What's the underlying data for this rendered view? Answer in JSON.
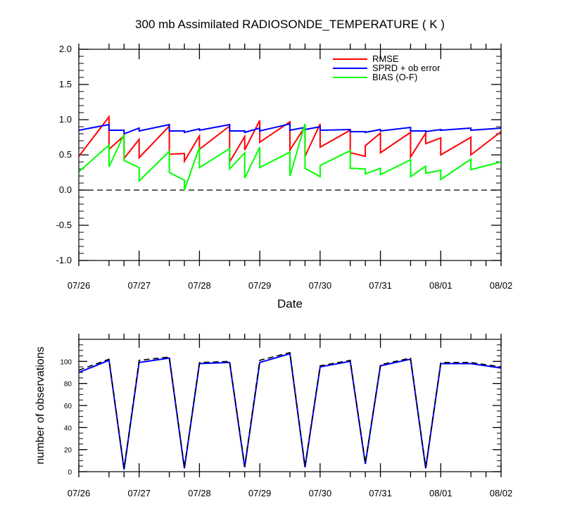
{
  "chart_data": [
    {
      "type": "line",
      "title": "300 mb Assimilated RADIOSONDE_TEMPERATURE ( K )",
      "xlabel": "Date",
      "ylabel": "",
      "x_tick_labels": [
        "07/26",
        "07/27",
        "07/28",
        "07/29",
        "07/30",
        "07/31",
        "08/01",
        "08/02"
      ],
      "xlim": [
        "07/26",
        "08/02"
      ],
      "ylim": [
        -1.0,
        2.0
      ],
      "y_ticks": [
        "-1.0",
        "-0.5",
        "0.0",
        "0.5",
        "1.0",
        "1.5",
        "2.0"
      ],
      "reference_line": {
        "y": 0.0,
        "style": "dashed"
      },
      "legend_position": "top-right",
      "series": [
        {
          "name": "RMSE",
          "color": "#ff0000",
          "x": [
            "07/26 00:00",
            "07/26 12:00",
            "07/26 12:00",
            "07/26 18:00",
            "07/26 18:00",
            "07/27 00:00",
            "07/27 00:00",
            "07/27 12:00",
            "07/27 12:00",
            "07/27 18:00",
            "07/27 18:00",
            "07/28 00:00",
            "07/28 00:00",
            "07/28 12:00",
            "07/28 12:00",
            "07/28 18:00",
            "07/28 18:00",
            "07/29 00:00",
            "07/29 00:00",
            "07/29 12:00",
            "07/29 12:00",
            "07/29 18:00",
            "07/29 18:00",
            "07/30 00:00",
            "07/30 00:00",
            "07/30 12:00",
            "07/30 12:00",
            "07/30 18:00",
            "07/30 18:00",
            "07/31 00:00",
            "07/31 00:00",
            "07/31 12:00",
            "07/31 12:00",
            "07/31 18:00",
            "07/31 18:00",
            "08/01 00:00",
            "08/01 00:00",
            "08/01 12:00",
            "08/01 12:00",
            "08/02 00:00"
          ],
          "y": [
            0.48,
            1.04,
            0.58,
            0.77,
            0.45,
            0.72,
            0.46,
            0.91,
            0.51,
            0.52,
            0.41,
            0.77,
            0.58,
            0.91,
            0.4,
            0.76,
            0.57,
            0.99,
            0.68,
            0.97,
            0.57,
            0.9,
            0.48,
            0.94,
            0.61,
            0.85,
            0.53,
            0.48,
            0.63,
            0.81,
            0.53,
            0.82,
            0.47,
            0.81,
            0.66,
            0.74,
            0.5,
            0.75,
            0.5,
            0.83
          ]
        },
        {
          "name": "SPRD + ob error",
          "color": "#0000ff",
          "x": [
            "07/26 00:00",
            "07/26 12:00",
            "07/26 12:00",
            "07/26 18:00",
            "07/26 18:00",
            "07/27 00:00",
            "07/27 00:00",
            "07/27 12:00",
            "07/27 12:00",
            "07/27 18:00",
            "07/27 18:00",
            "07/28 00:00",
            "07/28 00:00",
            "07/28 12:00",
            "07/28 12:00",
            "07/28 18:00",
            "07/28 18:00",
            "07/29 00:00",
            "07/29 00:00",
            "07/29 12:00",
            "07/29 12:00",
            "07/29 18:00",
            "07/29 18:00",
            "07/30 00:00",
            "07/30 00:00",
            "07/30 12:00",
            "07/30 12:00",
            "07/30 18:00",
            "07/30 18:00",
            "07/31 00:00",
            "07/31 00:00",
            "07/31 12:00",
            "07/31 12:00",
            "07/31 18:00",
            "07/31 18:00",
            "08/01 00:00",
            "08/01 00:00",
            "08/01 12:00",
            "08/01 12:00",
            "08/02 00:00"
          ],
          "y": [
            0.85,
            0.93,
            0.85,
            0.85,
            0.8,
            0.88,
            0.84,
            0.93,
            0.84,
            0.84,
            0.82,
            0.87,
            0.85,
            0.93,
            0.84,
            0.84,
            0.82,
            0.88,
            0.84,
            0.94,
            0.85,
            0.89,
            0.86,
            0.9,
            0.85,
            0.86,
            0.83,
            0.83,
            0.82,
            0.86,
            0.84,
            0.89,
            0.84,
            0.84,
            0.83,
            0.86,
            0.85,
            0.88,
            0.85,
            0.88
          ]
        },
        {
          "name": "BIAS (O-F)",
          "color": "#00ff00",
          "x": [
            "07/26 00:00",
            "07/26 12:00",
            "07/26 12:00",
            "07/26 18:00",
            "07/26 18:00",
            "07/27 00:00",
            "07/27 00:00",
            "07/27 12:00",
            "07/27 12:00",
            "07/27 18:00",
            "07/27 18:00",
            "07/28 00:00",
            "07/28 00:00",
            "07/28 12:00",
            "07/28 12:00",
            "07/28 18:00",
            "07/28 18:00",
            "07/29 00:00",
            "07/29 00:00",
            "07/29 12:00",
            "07/29 12:00",
            "07/29 18:00",
            "07/29 18:00",
            "07/30 00:00",
            "07/30 00:00",
            "07/30 12:00",
            "07/30 12:00",
            "07/30 18:00",
            "07/30 18:00",
            "07/31 00:00",
            "07/31 00:00",
            "07/31 12:00",
            "07/31 12:00",
            "07/31 18:00",
            "07/31 18:00",
            "08/01 00:00",
            "08/01 00:00",
            "08/01 12:00",
            "08/01 12:00",
            "08/02 00:00"
          ],
          "y": [
            0.26,
            0.64,
            0.33,
            0.79,
            0.42,
            0.32,
            0.13,
            0.55,
            0.25,
            0.14,
            0.0,
            0.61,
            0.32,
            0.59,
            0.3,
            0.53,
            0.17,
            0.61,
            0.32,
            0.54,
            0.2,
            0.94,
            0.31,
            0.19,
            0.35,
            0.56,
            0.31,
            0.3,
            0.23,
            0.31,
            0.22,
            0.43,
            0.19,
            0.34,
            0.24,
            0.28,
            0.15,
            0.44,
            0.29,
            0.4
          ]
        }
      ]
    },
    {
      "type": "line",
      "title": "",
      "xlabel": "",
      "ylabel": "number of observations",
      "x_tick_labels": [
        "07/26",
        "07/27",
        "07/28",
        "07/29",
        "07/30",
        "07/31",
        "08/01",
        "08/02"
      ],
      "xlim": [
        "07/26",
        "08/02"
      ],
      "ylim": [
        0,
        120
      ],
      "y_ticks": [
        "0",
        "20",
        "40",
        "60",
        "80",
        "100"
      ],
      "series": [
        {
          "style": "solid",
          "color": "#0000ff",
          "x": [
            "07/26 00:00",
            "07/26 12:00",
            "07/26 18:00",
            "07/27 00:00",
            "07/27 12:00",
            "07/27 18:00",
            "07/28 00:00",
            "07/28 12:00",
            "07/28 18:00",
            "07/29 00:00",
            "07/29 12:00",
            "07/29 18:00",
            "07/30 00:00",
            "07/30 12:00",
            "07/30 18:00",
            "07/31 00:00",
            "07/31 12:00",
            "07/31 18:00",
            "08/01 00:00",
            "08/01 12:00",
            "08/02 00:00"
          ],
          "y": [
            90,
            101,
            2,
            99,
            103,
            3,
            98,
            99,
            4,
            99,
            107,
            4,
            95,
            100,
            7,
            96,
            102,
            3,
            98,
            98,
            94
          ]
        },
        {
          "style": "dashed",
          "color": "#000000",
          "x": [
            "07/26 00:00",
            "07/26 12:00",
            "07/26 18:00",
            "07/27 00:00",
            "07/27 12:00",
            "07/27 18:00",
            "07/28 00:00",
            "07/28 12:00",
            "07/28 18:00",
            "07/29 00:00",
            "07/29 12:00",
            "07/29 18:00",
            "07/30 00:00",
            "07/30 12:00",
            "07/30 18:00",
            "07/31 00:00",
            "07/31 12:00",
            "07/31 18:00",
            "08/01 00:00",
            "08/01 12:00",
            "08/02 00:00"
          ],
          "y": [
            92,
            102,
            3,
            101,
            104,
            4,
            99,
            100,
            5,
            101,
            108,
            5,
            96,
            101,
            8,
            97,
            103,
            4,
            99,
            99,
            95
          ]
        }
      ]
    }
  ]
}
